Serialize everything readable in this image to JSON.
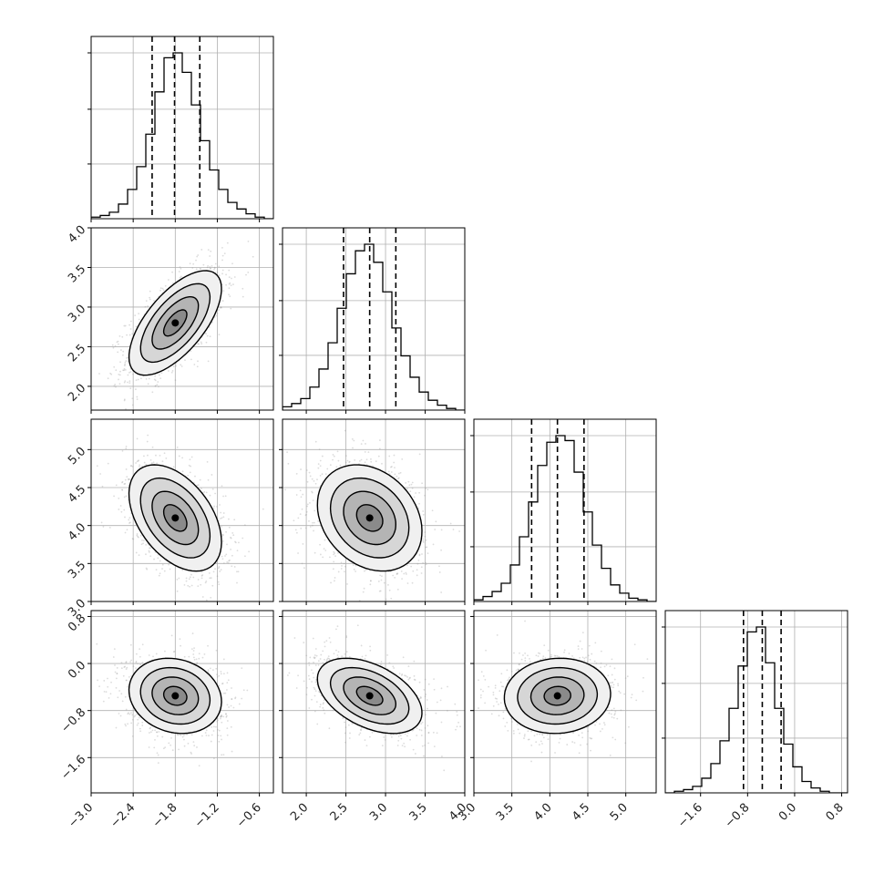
{
  "chart_data": {
    "type": "corner",
    "n_params": 4,
    "grid": true,
    "params": [
      {
        "index": 0,
        "range": [
          -3.0,
          -0.4
        ],
        "ticks": [
          -3.0,
          -2.4,
          -1.8,
          -1.2,
          -0.6
        ],
        "tick_labels": [
          "−3.0",
          "−2.4",
          "−1.8",
          "−1.2",
          "−0.6"
        ],
        "quantiles": [
          -2.13,
          -1.81,
          -1.45
        ]
      },
      {
        "index": 1,
        "range": [
          1.7,
          4.0
        ],
        "ticks": [
          2.0,
          2.5,
          3.0,
          3.5,
          4.0
        ],
        "tick_labels": [
          "2.0",
          "2.5",
          "3.0",
          "3.5",
          "4.0"
        ],
        "quantiles": [
          2.47,
          2.8,
          3.13
        ]
      },
      {
        "index": 2,
        "range": [
          3.0,
          5.4
        ],
        "ticks": [
          3.0,
          3.5,
          4.0,
          4.5,
          5.0
        ],
        "tick_labels": [
          "3.0",
          "3.5",
          "4.0",
          "4.5",
          "5.0"
        ],
        "quantiles": [
          3.76,
          4.1,
          4.45
        ]
      },
      {
        "index": 3,
        "range": [
          -2.2,
          0.9
        ],
        "ticks": [
          -1.6,
          -0.8,
          0.0,
          0.8
        ],
        "tick_labels": [
          "−1.6",
          "−0.8",
          "0.0",
          "0.8"
        ],
        "quantiles": [
          -0.87,
          -0.55,
          -0.23
        ]
      }
    ],
    "histograms": [
      {
        "param": 0,
        "edges_range": [
          -3.0,
          -0.4
        ],
        "counts": [
          1,
          2,
          4,
          9,
          18,
          32,
          52,
          78,
          99,
          102,
          90,
          70,
          48,
          30,
          18,
          10,
          6,
          3,
          1,
          0
        ]
      },
      {
        "param": 1,
        "edges_range": [
          1.7,
          4.0
        ],
        "counts": [
          2,
          4,
          7,
          14,
          25,
          41,
          62,
          83,
          97,
          101,
          90,
          72,
          50,
          33,
          20,
          11,
          6,
          3,
          1,
          0
        ]
      },
      {
        "param": 2,
        "edges_range": [
          3.0,
          5.4
        ],
        "counts": [
          1,
          3,
          6,
          11,
          22,
          39,
          60,
          82,
          96,
          100,
          97,
          78,
          54,
          34,
          20,
          10,
          5,
          2,
          1,
          0
        ]
      },
      {
        "param": 3,
        "edges_range": [
          -2.2,
          0.9
        ],
        "counts": [
          0,
          1,
          2,
          4,
          9,
          18,
          32,
          52,
          78,
          99,
          102,
          80,
          52,
          30,
          16,
          7,
          3,
          1,
          0,
          0
        ]
      }
    ],
    "pairs": [
      {
        "x_param": 0,
        "y_param": 1,
        "mean": [
          -1.8,
          2.8
        ],
        "sd": [
          0.33,
          0.33
        ],
        "rho": 0.65
      },
      {
        "x_param": 0,
        "y_param": 2,
        "mean": [
          -1.8,
          4.1
        ],
        "sd": [
          0.33,
          0.35
        ],
        "rho": -0.45
      },
      {
        "x_param": 1,
        "y_param": 2,
        "mean": [
          2.8,
          4.1
        ],
        "sd": [
          0.33,
          0.35
        ],
        "rho": -0.25
      },
      {
        "x_param": 0,
        "y_param": 3,
        "mean": [
          -1.8,
          -0.55
        ],
        "sd": [
          0.33,
          0.32
        ],
        "rho": -0.15
      },
      {
        "x_param": 1,
        "y_param": 3,
        "mean": [
          2.8,
          -0.55
        ],
        "sd": [
          0.33,
          0.32
        ],
        "rho": -0.45
      },
      {
        "x_param": 2,
        "y_param": 3,
        "mean": [
          4.1,
          -0.55
        ],
        "sd": [
          0.35,
          0.32
        ],
        "rho": 0.05
      }
    ],
    "contour_levels_sigma": [
      0.5,
      1.0,
      1.5,
      2.0
    ]
  }
}
